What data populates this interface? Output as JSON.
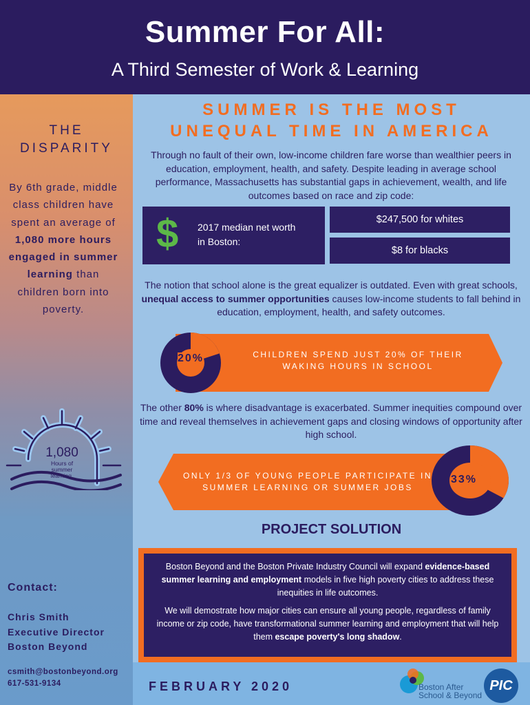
{
  "header": {
    "title": "Summer For All:",
    "subtitle": "A Third Semester of Work & Learning"
  },
  "left": {
    "heading": [
      "THE",
      "DISPARITY"
    ],
    "text_parts": [
      "By 6th grade, middle class children have spent an average of ",
      "1,080 more hours engaged in summer learning",
      " than children born into poverty."
    ],
    "sun_number": "1,080",
    "sun_caption": "Hours of summer learning.",
    "contact_label": "Contact:",
    "contact_name": "Chris Smith",
    "contact_title": "Executive Director",
    "contact_org": "Boston Beyond",
    "email": "csmith@bostonbeyond.org",
    "phone": "617-531-9134"
  },
  "main": {
    "headline": [
      "SUMMER IS THE MOST",
      "UNEQUAL TIME IN AMERICA"
    ],
    "intro": "Through no fault of their own, low-income children fare worse than wealthier peers in education, employment, health, and safety. Despite leading in average school performance, Massachusetts has substantial gaps in achievement, wealth, and life outcomes based on race and zip code:",
    "dollar": "$",
    "networth_label": "2017 median net worth in Boston:",
    "whites": "$247,500 for whites",
    "blacks": "$8 for blacks",
    "notion_parts": [
      "The notion that school alone is the great equalizer is outdated. Even with great schools, ",
      "unequal access to summer opportunities",
      " causes low-income students to fall behind in education, employment, health, and safety outcomes."
    ],
    "pct1": "20%",
    "pct1_value": 20,
    "band1": "CHILDREN SPEND JUST 20% OF THEIR WAKING HOURS IN SCHOOL",
    "other_parts": [
      "The other ",
      "80%",
      " is where disadvantage is exacerbated. Summer inequities compound over time and reveal themselves in achievement gaps and closing windows of opportunity after high school."
    ],
    "pct2": "33%",
    "pct2_value": 33,
    "band2": "ONLY 1/3 OF YOUNG PEOPLE PARTICIPATE IN SUMMER LEARNING OR SUMMER JOBS",
    "solution_title": "PROJECT SOLUTION",
    "sol1_parts": [
      "Boston Beyond and the Boston Private Industry Council will expand ",
      "evidence-based summer learning and employment",
      " models in five high poverty cities to address these inequities in life outcomes."
    ],
    "sol2_parts": [
      "We will demostrate how major cities can ensure all young people, regardless of family income or zip code, have transformational summer learning and employment that will help them ",
      "escape poverty's long shadow",
      "."
    ],
    "date": "FEBRUARY 2020",
    "logo1": "Boston After School & Beyond",
    "logo2": "PIC"
  },
  "colors": {
    "navy": "#2b1c5f",
    "orange": "#f26d21",
    "light_blue": "#9dc3e6",
    "green": "#5cb848"
  }
}
